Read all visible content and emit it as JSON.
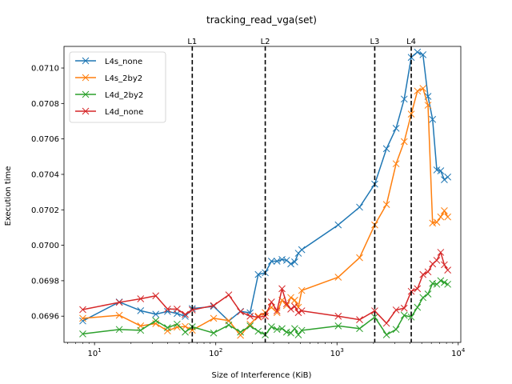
{
  "chart_data": {
    "type": "line",
    "title": "tracking_read_vga(set)",
    "xlabel": "Size of Interference (KiB)",
    "ylabel": "Execution time",
    "xscale": "log",
    "xlim": [
      5.6,
      10500
    ],
    "ylim": [
      0.069452,
      0.071122
    ],
    "xticks": [
      {
        "value": 10,
        "base": "10",
        "exp": "1"
      },
      {
        "value": 100,
        "base": "10",
        "exp": "2"
      },
      {
        "value": 1000,
        "base": "10",
        "exp": "3"
      },
      {
        "value": 10000,
        "base": "10",
        "exp": "4"
      }
    ],
    "yticks": [
      {
        "value": 0.0696,
        "label": "0.0696"
      },
      {
        "value": 0.0698,
        "label": "0.0698"
      },
      {
        "value": 0.07,
        "label": "0.0700"
      },
      {
        "value": 0.0702,
        "label": "0.0702"
      },
      {
        "value": 0.0704,
        "label": "0.0704"
      },
      {
        "value": 0.0706,
        "label": "0.0706"
      },
      {
        "value": 0.0708,
        "label": "0.0708"
      },
      {
        "value": 0.071,
        "label": "0.0710"
      }
    ],
    "grid": false,
    "legend": "upper left",
    "vlines": [
      {
        "label": "L1",
        "x": 64
      },
      {
        "label": "L2",
        "x": 256
      },
      {
        "label": "L3",
        "x": 2048
      },
      {
        "label": "L4",
        "x": 4096
      }
    ],
    "series": [
      {
        "name": "L4s_none",
        "color": "#1f77b4",
        "points": [
          [
            8,
            0.069573
          ],
          [
            16,
            0.06968
          ],
          [
            24,
            0.069631
          ],
          [
            32,
            0.069611
          ],
          [
            40,
            0.069627
          ],
          [
            48,
            0.069615
          ],
          [
            56,
            0.069599
          ],
          [
            64,
            0.069643
          ],
          [
            96,
            0.069655
          ],
          [
            128,
            0.069573
          ],
          [
            160,
            0.069627
          ],
          [
            192,
            0.069619
          ],
          [
            224,
            0.069835
          ],
          [
            256,
            0.069845
          ],
          [
            288,
            0.06991
          ],
          [
            320,
            0.06991
          ],
          [
            352,
            0.06992
          ],
          [
            384,
            0.069915
          ],
          [
            416,
            0.069895
          ],
          [
            448,
            0.069906
          ],
          [
            480,
            0.069955
          ],
          [
            512,
            0.069975
          ],
          [
            1024,
            0.070115
          ],
          [
            1536,
            0.070215
          ],
          [
            2048,
            0.070345
          ],
          [
            2560,
            0.070545
          ],
          [
            3072,
            0.07066
          ],
          [
            3584,
            0.070825
          ],
          [
            4096,
            0.07106
          ],
          [
            4608,
            0.07109
          ],
          [
            5120,
            0.071075
          ],
          [
            5632,
            0.07084
          ],
          [
            6144,
            0.07071
          ],
          [
            6656,
            0.070425
          ],
          [
            7168,
            0.07042
          ],
          [
            7680,
            0.07037
          ],
          [
            8192,
            0.070385
          ]
        ]
      },
      {
        "name": "L4s_2by2",
        "color": "#ff7f0e",
        "points": [
          [
            8,
            0.069588
          ],
          [
            16,
            0.069605
          ],
          [
            24,
            0.069545
          ],
          [
            32,
            0.069558
          ],
          [
            40,
            0.069517
          ],
          [
            48,
            0.069538
          ],
          [
            56,
            0.069542
          ],
          [
            64,
            0.069521
          ],
          [
            96,
            0.069588
          ],
          [
            128,
            0.069575
          ],
          [
            160,
            0.069492
          ],
          [
            192,
            0.069555
          ],
          [
            224,
            0.0696
          ],
          [
            256,
            0.06962
          ],
          [
            288,
            0.06965
          ],
          [
            320,
            0.06962
          ],
          [
            352,
            0.06969
          ],
          [
            384,
            0.06966
          ],
          [
            416,
            0.069705
          ],
          [
            448,
            0.06969
          ],
          [
            480,
            0.06965
          ],
          [
            512,
            0.069745
          ],
          [
            1024,
            0.06982
          ],
          [
            1536,
            0.06993
          ],
          [
            2048,
            0.070115
          ],
          [
            2560,
            0.07023
          ],
          [
            3072,
            0.07046
          ],
          [
            3584,
            0.070585
          ],
          [
            4096,
            0.07074
          ],
          [
            4608,
            0.07087
          ],
          [
            5120,
            0.070885
          ],
          [
            5632,
            0.07079
          ],
          [
            6144,
            0.070125
          ],
          [
            6656,
            0.07013
          ],
          [
            7168,
            0.07016
          ],
          [
            7680,
            0.070195
          ],
          [
            8192,
            0.07016
          ]
        ]
      },
      {
        "name": "L4d_2by2",
        "color": "#2ca02c",
        "points": [
          [
            8,
            0.0695
          ],
          [
            16,
            0.069525
          ],
          [
            24,
            0.06952
          ],
          [
            32,
            0.069575
          ],
          [
            40,
            0.069535
          ],
          [
            48,
            0.069555
          ],
          [
            56,
            0.06951
          ],
          [
            64,
            0.06954
          ],
          [
            96,
            0.069505
          ],
          [
            128,
            0.06955
          ],
          [
            160,
            0.06951
          ],
          [
            192,
            0.069545
          ],
          [
            224,
            0.069515
          ],
          [
            256,
            0.069495
          ],
          [
            288,
            0.06954
          ],
          [
            320,
            0.069525
          ],
          [
            352,
            0.06953
          ],
          [
            384,
            0.06951
          ],
          [
            416,
            0.069505
          ],
          [
            448,
            0.06953
          ],
          [
            480,
            0.069495
          ],
          [
            512,
            0.06952
          ],
          [
            1024,
            0.069545
          ],
          [
            1536,
            0.06953
          ],
          [
            2048,
            0.069595
          ],
          [
            2560,
            0.069495
          ],
          [
            3072,
            0.069525
          ],
          [
            3584,
            0.069605
          ],
          [
            4096,
            0.069595
          ],
          [
            4608,
            0.06965
          ],
          [
            5120,
            0.069705
          ],
          [
            5632,
            0.069725
          ],
          [
            6144,
            0.069785
          ],
          [
            6656,
            0.06978
          ],
          [
            7168,
            0.0698
          ],
          [
            7680,
            0.06979
          ],
          [
            8192,
            0.06978
          ]
        ]
      },
      {
        "name": "L4d_none",
        "color": "#d62728",
        "points": [
          [
            8,
            0.069637
          ],
          [
            16,
            0.069678
          ],
          [
            24,
            0.069698
          ],
          [
            32,
            0.069715
          ],
          [
            40,
            0.06964
          ],
          [
            48,
            0.06964
          ],
          [
            56,
            0.06961
          ],
          [
            64,
            0.069635
          ],
          [
            96,
            0.06966
          ],
          [
            128,
            0.06972
          ],
          [
            160,
            0.069625
          ],
          [
            192,
            0.0696
          ],
          [
            224,
            0.069595
          ],
          [
            256,
            0.0696
          ],
          [
            288,
            0.06968
          ],
          [
            320,
            0.06963
          ],
          [
            352,
            0.069755
          ],
          [
            384,
            0.06967
          ],
          [
            416,
            0.06964
          ],
          [
            448,
            0.069655
          ],
          [
            480,
            0.06962
          ],
          [
            512,
            0.06963
          ],
          [
            1024,
            0.0696
          ],
          [
            1536,
            0.06958
          ],
          [
            2048,
            0.06963
          ],
          [
            2560,
            0.06956
          ],
          [
            3072,
            0.069635
          ],
          [
            3584,
            0.069645
          ],
          [
            4096,
            0.06974
          ],
          [
            4608,
            0.069755
          ],
          [
            5120,
            0.069835
          ],
          [
            5632,
            0.06985
          ],
          [
            6144,
            0.069895
          ],
          [
            6656,
            0.069915
          ],
          [
            7168,
            0.06996
          ],
          [
            7680,
            0.06989
          ],
          [
            8192,
            0.06986
          ]
        ]
      }
    ]
  }
}
